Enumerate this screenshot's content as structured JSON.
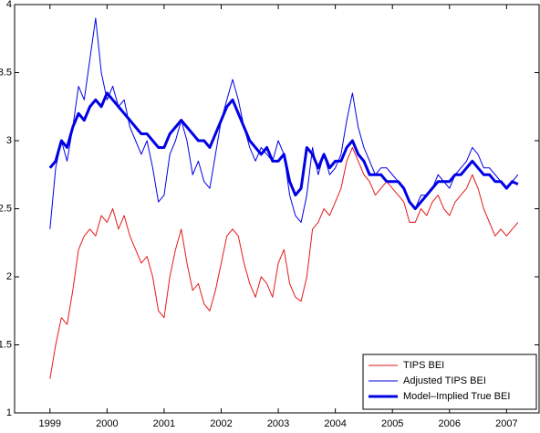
{
  "chart_data": {
    "type": "line",
    "x": [
      1999.0,
      1999.1,
      1999.2,
      1999.3,
      1999.4,
      1999.5,
      1999.6,
      1999.7,
      1999.8,
      1999.9,
      2000.0,
      2000.1,
      2000.2,
      2000.3,
      2000.4,
      2000.5,
      2000.6,
      2000.7,
      2000.8,
      2000.9,
      2001.0,
      2001.1,
      2001.2,
      2001.3,
      2001.4,
      2001.5,
      2001.6,
      2001.7,
      2001.8,
      2001.9,
      2002.0,
      2002.1,
      2002.2,
      2002.3,
      2002.4,
      2002.5,
      2002.6,
      2002.7,
      2002.8,
      2002.9,
      2003.0,
      2003.1,
      2003.2,
      2003.3,
      2003.4,
      2003.5,
      2003.6,
      2003.7,
      2003.8,
      2003.9,
      2004.0,
      2004.1,
      2004.2,
      2004.3,
      2004.4,
      2004.5,
      2004.6,
      2004.7,
      2004.8,
      2004.9,
      2005.0,
      2005.1,
      2005.2,
      2005.3,
      2005.4,
      2005.5,
      2005.6,
      2005.7,
      2005.8,
      2005.9,
      2006.0,
      2006.1,
      2006.2,
      2006.3,
      2006.4,
      2006.5,
      2006.6,
      2006.7,
      2006.8,
      2006.9,
      2007.0,
      2007.1,
      2007.2
    ],
    "series": [
      {
        "name": "TIPS BEI",
        "color": "#e41a1a",
        "width": 1,
        "values": [
          1.25,
          1.5,
          1.7,
          1.65,
          1.9,
          2.2,
          2.3,
          2.35,
          2.3,
          2.45,
          2.4,
          2.5,
          2.35,
          2.45,
          2.3,
          2.2,
          2.1,
          2.15,
          2.0,
          1.75,
          1.7,
          2.0,
          2.2,
          2.35,
          2.1,
          1.9,
          1.95,
          1.8,
          1.75,
          1.9,
          2.1,
          2.3,
          2.35,
          2.3,
          2.1,
          1.95,
          1.85,
          2.0,
          1.95,
          1.85,
          2.1,
          2.2,
          1.95,
          1.85,
          1.82,
          2.0,
          2.35,
          2.4,
          2.5,
          2.45,
          2.55,
          2.65,
          2.85,
          2.95,
          2.85,
          2.75,
          2.7,
          2.6,
          2.65,
          2.7,
          2.65,
          2.6,
          2.55,
          2.4,
          2.4,
          2.5,
          2.45,
          2.55,
          2.6,
          2.5,
          2.45,
          2.55,
          2.6,
          2.65,
          2.75,
          2.65,
          2.5,
          2.4,
          2.3,
          2.35,
          2.3,
          2.35,
          2.4
        ]
      },
      {
        "name": "Adjusted TIPS BEI",
        "color": "#0000e6",
        "width": 1,
        "values": [
          2.35,
          2.8,
          3.0,
          2.85,
          3.1,
          3.4,
          3.3,
          3.6,
          3.9,
          3.5,
          3.3,
          3.4,
          3.25,
          3.3,
          3.1,
          3.0,
          2.9,
          3.0,
          2.8,
          2.55,
          2.6,
          2.9,
          3.0,
          3.15,
          3.0,
          2.75,
          2.85,
          2.7,
          2.65,
          2.9,
          3.15,
          3.3,
          3.45,
          3.3,
          3.1,
          2.95,
          2.85,
          2.95,
          2.9,
          2.85,
          3.0,
          2.9,
          2.6,
          2.45,
          2.4,
          2.6,
          2.95,
          2.75,
          2.9,
          2.75,
          2.8,
          2.9,
          3.15,
          3.35,
          3.1,
          2.95,
          2.85,
          2.75,
          2.8,
          2.8,
          2.75,
          2.7,
          2.65,
          2.55,
          2.5,
          2.6,
          2.6,
          2.65,
          2.75,
          2.7,
          2.65,
          2.75,
          2.8,
          2.85,
          2.95,
          2.9,
          2.8,
          2.8,
          2.75,
          2.7,
          2.65,
          2.7,
          2.75
        ]
      },
      {
        "name": "Model–Implied True BEI",
        "color": "#0000e6",
        "width": 3,
        "values": [
          2.8,
          2.85,
          3.0,
          2.95,
          3.1,
          3.2,
          3.15,
          3.25,
          3.3,
          3.25,
          3.35,
          3.3,
          3.25,
          3.2,
          3.15,
          3.1,
          3.05,
          3.05,
          3.0,
          2.95,
          2.95,
          3.05,
          3.1,
          3.15,
          3.1,
          3.05,
          3.0,
          3.0,
          2.95,
          3.05,
          3.15,
          3.25,
          3.3,
          3.2,
          3.1,
          3.0,
          2.95,
          2.9,
          2.95,
          2.85,
          2.85,
          2.9,
          2.7,
          2.6,
          2.65,
          2.95,
          2.9,
          2.8,
          2.9,
          2.8,
          2.85,
          2.85,
          2.95,
          3.0,
          2.9,
          2.85,
          2.75,
          2.75,
          2.75,
          2.7,
          2.7,
          2.7,
          2.65,
          2.55,
          2.5,
          2.55,
          2.6,
          2.65,
          2.7,
          2.7,
          2.7,
          2.75,
          2.75,
          2.8,
          2.85,
          2.8,
          2.75,
          2.75,
          2.7,
          2.7,
          2.65,
          2.7,
          2.68
        ]
      }
    ],
    "xlim": [
      1998.38,
      2007.57
    ],
    "xticks": [
      1999,
      2000,
      2001,
      2002,
      2003,
      2004,
      2005,
      2006,
      2007
    ],
    "ylim": [
      1,
      4
    ],
    "yticks": [
      1,
      1.5,
      2,
      2.5,
      3,
      3.5,
      4
    ],
    "legend": "lower right",
    "grid": false
  }
}
